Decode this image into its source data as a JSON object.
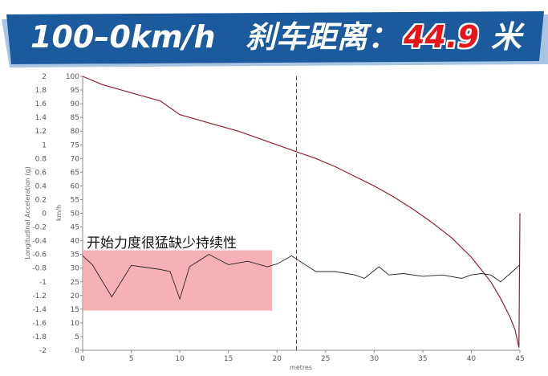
{
  "banner": {
    "title": "100–0km/h",
    "label": "刹车距离：",
    "value": "44.9",
    "unit": "米",
    "colors": {
      "background": "#1c5a9e",
      "value": "#e8141c",
      "text": "#ffffff"
    }
  },
  "note": {
    "text": "开始力度很猛缺少持续性",
    "highlight_x_range": [
      0,
      19.5
    ],
    "highlight_speed_range": [
      14.5,
      36.5
    ],
    "highlight_color": "#f4a3a8"
  },
  "chart_data": {
    "type": "line",
    "xlabel": "metres",
    "xlim": [
      0,
      45
    ],
    "xticks": [
      0,
      5,
      10,
      15,
      20,
      25,
      30,
      35,
      40,
      45
    ],
    "marker_x": 22,
    "y_left": {
      "label": "Longitudinal Acceleration (g)",
      "lim": [
        -2,
        2
      ],
      "ticks": [
        "2",
        "1.8",
        "1.6",
        "1.4",
        "1.2",
        "1",
        "0.8",
        "0.6",
        "0.4",
        "0.2",
        "0",
        "-0.2",
        "-0.4",
        "-0.6",
        "-0.8",
        "-1",
        "-1.2",
        "-1.4",
        "-1.6",
        "-1.8",
        "-2"
      ]
    },
    "y_right": {
      "label": "km/h",
      "lim": [
        0,
        100
      ],
      "ticks": [
        "100",
        "95",
        "90",
        "85",
        "80",
        "75",
        "70",
        "65",
        "60",
        "55",
        "50",
        "45",
        "40",
        "35",
        "30",
        "25",
        "20",
        "15",
        "10",
        "5",
        "0"
      ]
    },
    "series": [
      {
        "axis": "speed",
        "color": "#8b2230",
        "x": [
          0,
          2,
          4,
          6,
          8,
          10,
          12,
          14,
          16,
          18,
          20,
          22,
          24,
          26,
          28,
          30,
          32,
          34,
          36,
          38,
          40,
          41,
          42,
          43,
          44,
          44.5,
          44.9,
          45
        ],
        "values": [
          100,
          97,
          95,
          93,
          91,
          86,
          84,
          82,
          80,
          77.5,
          75,
          72.5,
          70,
          67,
          63.5,
          60,
          56,
          51.5,
          46.5,
          41,
          34,
          29.5,
          25,
          19,
          12,
          7.5,
          1,
          50
        ]
      },
      {
        "axis": "accel",
        "color": "#222222",
        "x": [
          0,
          1,
          3,
          5,
          6,
          8,
          9,
          10,
          11,
          13,
          15,
          17,
          19,
          20,
          21.5,
          23,
          24,
          26,
          28,
          29,
          30.5,
          31.5,
          33,
          35,
          37,
          39,
          40,
          41,
          42,
          43,
          44,
          45
        ],
        "values": [
          -0.62,
          -0.75,
          -1.22,
          -0.76,
          -0.78,
          -0.82,
          -0.85,
          -1.25,
          -0.78,
          -0.6,
          -0.75,
          -0.7,
          -0.78,
          -0.74,
          -0.62,
          -0.76,
          -0.85,
          -0.85,
          -0.9,
          -0.95,
          -0.78,
          -0.9,
          -0.88,
          -0.92,
          -0.9,
          -0.95,
          -0.9,
          -0.88,
          -0.9,
          -1.0,
          -0.88,
          -0.75
        ]
      }
    ]
  }
}
